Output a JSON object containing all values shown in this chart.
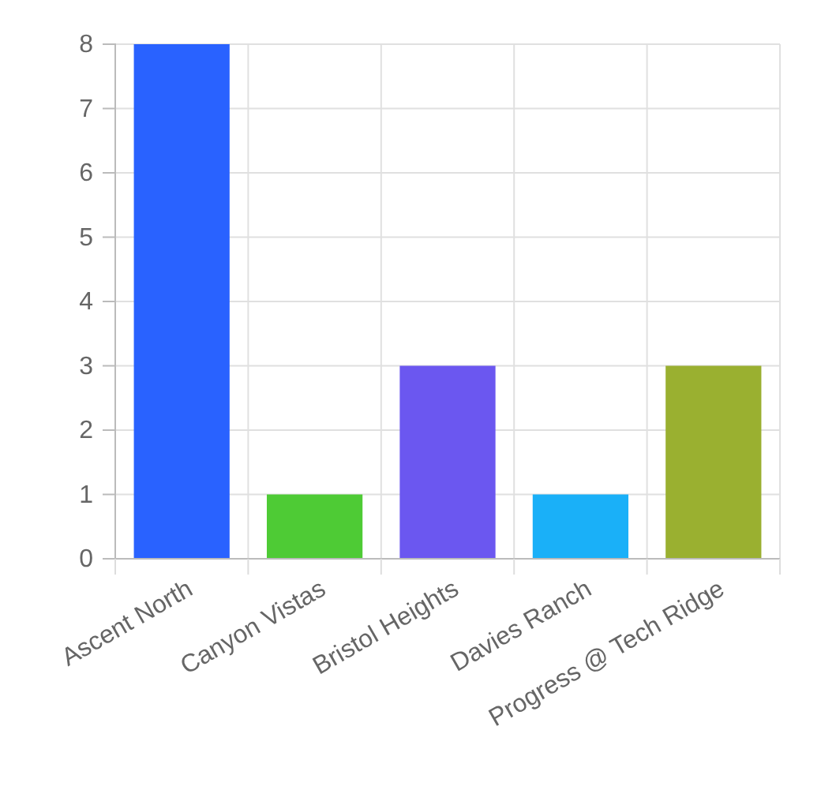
{
  "chart_data": {
    "type": "bar",
    "categories": [
      "Ascent North",
      "Canyon Vistas",
      "Bristol Heights",
      "Davies Ranch",
      "Progress @ Tech Ridge"
    ],
    "values": [
      8,
      1,
      3,
      1,
      3
    ],
    "colors": [
      "#2962ff",
      "#4ecb35",
      "#6b57f0",
      "#1ab0f8",
      "#9ab030"
    ],
    "ylim": [
      0,
      8
    ],
    "yticks": [
      0,
      1,
      2,
      3,
      4,
      5,
      6,
      7,
      8
    ],
    "grid": true
  }
}
